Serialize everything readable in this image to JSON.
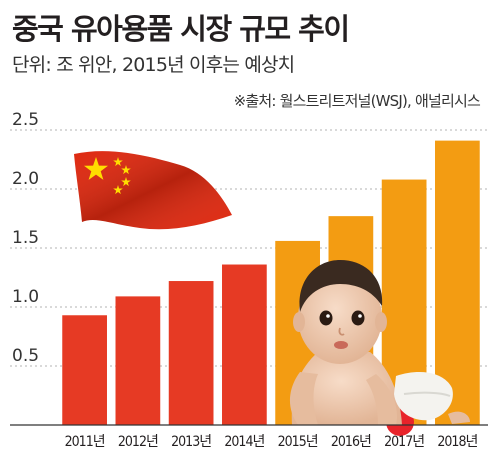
{
  "chart_data": {
    "type": "bar",
    "title": "중국 유아용품 시장 규모 추이",
    "subtitle": "단위: 조 위안, 2015년 이후는 예상치",
    "source": "※출처: 월스트리트저널(WSJ), 애널리시스",
    "categories": [
      "2011년",
      "2012년",
      "2013년",
      "2014년",
      "2015년",
      "2016년",
      "2017년",
      "2018년"
    ],
    "values": [
      0.93,
      1.09,
      1.22,
      1.36,
      1.56,
      1.77,
      2.08,
      2.41
    ],
    "forecast_from_index": 4,
    "ylim": [
      0,
      2.5
    ],
    "yticks": [
      0.5,
      1.0,
      1.5,
      2.0,
      2.5
    ],
    "ytick_labels": [
      "0.5",
      "1.0",
      "1.5",
      "2.0",
      "2.5"
    ],
    "grid": true,
    "colors": {
      "actual": "#e63a24",
      "forecast": "#f39c12",
      "grid": "#9a9a9a",
      "axis": "#333333"
    }
  }
}
